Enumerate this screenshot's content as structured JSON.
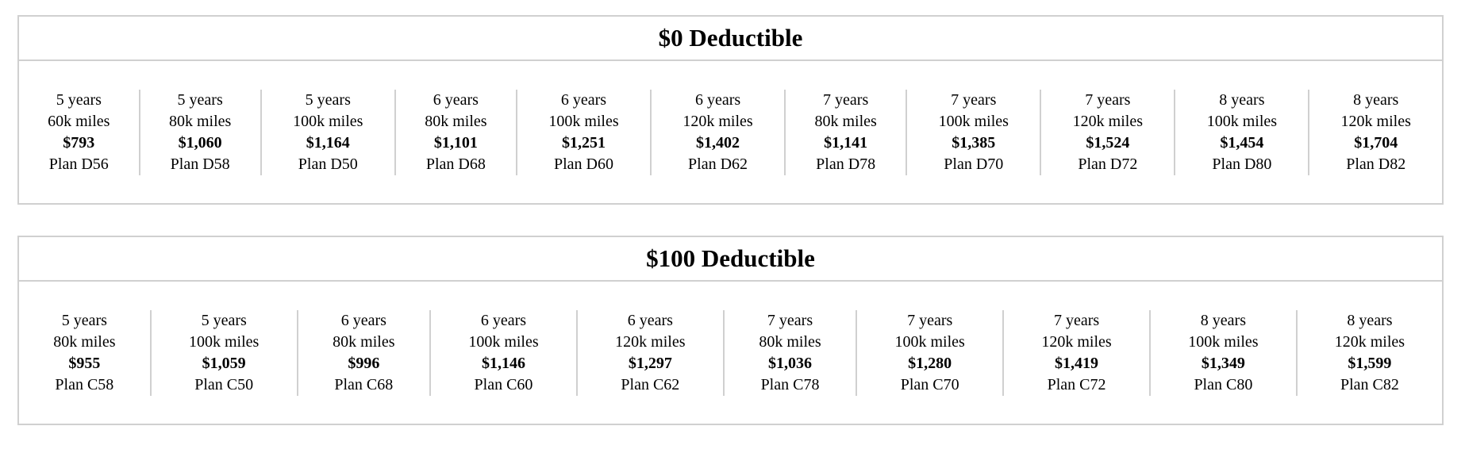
{
  "sections": [
    {
      "title": "$0 Deductible",
      "plans": [
        {
          "term": "5 years",
          "miles": "60k miles",
          "price": "$793",
          "plan": "Plan D56"
        },
        {
          "term": "5 years",
          "miles": "80k miles",
          "price": "$1,060",
          "plan": "Plan D58"
        },
        {
          "term": "5 years",
          "miles": "100k miles",
          "price": "$1,164",
          "plan": "Plan D50"
        },
        {
          "term": "6 years",
          "miles": "80k miles",
          "price": "$1,101",
          "plan": "Plan D68"
        },
        {
          "term": "6 years",
          "miles": "100k miles",
          "price": "$1,251",
          "plan": "Plan D60"
        },
        {
          "term": "6 years",
          "miles": "120k miles",
          "price": "$1,402",
          "plan": "Plan D62"
        },
        {
          "term": "7 years",
          "miles": "80k miles",
          "price": "$1,141",
          "plan": "Plan D78"
        },
        {
          "term": "7 years",
          "miles": "100k miles",
          "price": "$1,385",
          "plan": "Plan D70"
        },
        {
          "term": "7 years",
          "miles": "120k miles",
          "price": "$1,524",
          "plan": "Plan D72"
        },
        {
          "term": "8 years",
          "miles": "100k miles",
          "price": "$1,454",
          "plan": "Plan D80"
        },
        {
          "term": "8 years",
          "miles": "120k miles",
          "price": "$1,704",
          "plan": "Plan D82"
        }
      ]
    },
    {
      "title": "$100 Deductible",
      "plans": [
        {
          "term": "5 years",
          "miles": "80k miles",
          "price": "$955",
          "plan": "Plan C58"
        },
        {
          "term": "5 years",
          "miles": "100k miles",
          "price": "$1,059",
          "plan": "Plan C50"
        },
        {
          "term": "6 years",
          "miles": "80k miles",
          "price": "$996",
          "plan": "Plan C68"
        },
        {
          "term": "6 years",
          "miles": "100k miles",
          "price": "$1,146",
          "plan": "Plan C60"
        },
        {
          "term": "6 years",
          "miles": "120k miles",
          "price": "$1,297",
          "plan": "Plan C62"
        },
        {
          "term": "7 years",
          "miles": "80k miles",
          "price": "$1,036",
          "plan": "Plan C78"
        },
        {
          "term": "7 years",
          "miles": "100k miles",
          "price": "$1,280",
          "plan": "Plan C70"
        },
        {
          "term": "7 years",
          "miles": "120k miles",
          "price": "$1,419",
          "plan": "Plan C72"
        },
        {
          "term": "8 years",
          "miles": "100k miles",
          "price": "$1,349",
          "plan": "Plan C80"
        },
        {
          "term": "8 years",
          "miles": "120k miles",
          "price": "$1,599",
          "plan": "Plan C82"
        }
      ]
    }
  ]
}
